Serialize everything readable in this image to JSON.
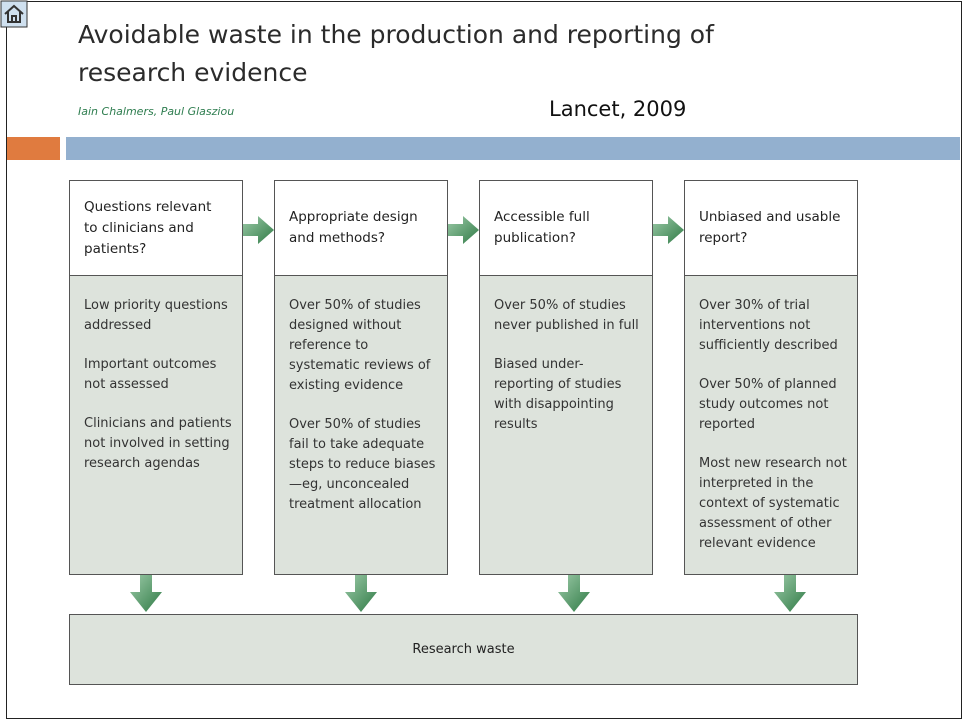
{
  "header": {
    "title": "Avoidable waste in the production and reporting of research evidence",
    "authors": "Iain Chalmers, Paul Glasziou",
    "citation": "Lancet, 2009"
  },
  "columns": [
    {
      "heading": "Questions relevant to clinicians and patients?",
      "items": [
        "Low priority questions addressed",
        "Important outcomes not assessed",
        "Clinicians and patients not involved in setting research agendas"
      ]
    },
    {
      "heading": "Appropriate design and methods?",
      "items": [
        "Over 50% of studies designed without reference to systematic reviews of existing evidence",
        "Over 50% of studies fail to take adequate steps to reduce biases—eg, unconcealed treatment allocation"
      ]
    },
    {
      "heading": "Accessible full publication?",
      "items": [
        "Over 50% of studies never published in full",
        "Biased under-reporting of studies with disappointing results"
      ]
    },
    {
      "heading": "Unbiased and usable report?",
      "items": [
        "Over 30% of trial interventions not sufficiently described",
        "Over 50% of planned study outcomes not reported",
        "Most new research not interpreted in the context of systematic assessment of other relevant evidence"
      ]
    }
  ],
  "outcome": "Research waste"
}
